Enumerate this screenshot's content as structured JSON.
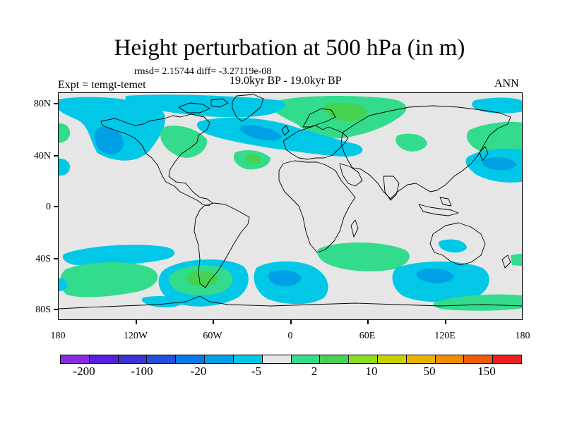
{
  "title": "Height perturbation at 500 hPa (in m)",
  "stats_text": "rmsd= 2.15744 diff= -3.27119e-08",
  "experiment": "Expt = temgt-temet",
  "period": "19.0kyr BP - 19.0kyr BP",
  "season": "ANN",
  "map": {
    "projection": "cylindrical-equidistant",
    "background_color": "#e6e6e6",
    "lat_labels": [
      "80N",
      "40N",
      "0",
      "40S",
      "80S"
    ],
    "lon_labels": [
      "180",
      "120W",
      "60W",
      "0",
      "60E",
      "120E",
      "180"
    ],
    "contour_fill": [
      {
        "color": "#00c8e6",
        "lon_lat_bounds": "Pacific NE",
        "sign": "negative"
      },
      {
        "color": "#32dc8c",
        "lon_lat_bounds": "Arctic / Europe",
        "sign": "positive"
      }
    ]
  },
  "colorbar": {
    "colors": [
      "#8a2be2",
      "#5a1ee0",
      "#3c32d2",
      "#1e50dc",
      "#0a78e6",
      "#00a0e6",
      "#00c8e6",
      "#e6e6e6",
      "#32dc8c",
      "#46d250",
      "#8cdc1e",
      "#c8d200",
      "#e6b400",
      "#f08c00",
      "#f05a0a",
      "#f01e1e"
    ],
    "labels": [
      "-200",
      "-100",
      "-20",
      "-5",
      "2",
      "10",
      "50",
      "150"
    ]
  }
}
